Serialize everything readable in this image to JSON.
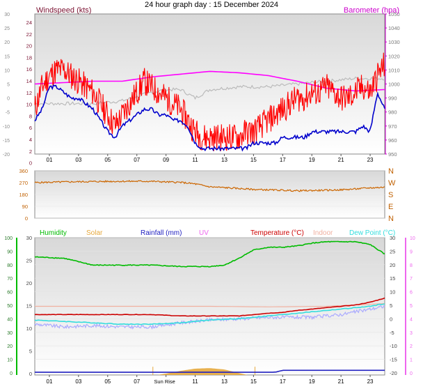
{
  "title": "24 hour graph day : 15 December 2024",
  "colors": {
    "wind": "#ff0000",
    "gust": "#0000cc",
    "baro": "#ff00ff",
    "baro_axis": "#cc00cc",
    "dir": "#cc6600",
    "humidity": "#00bb00",
    "solar": "#e6a83c",
    "rain": "#2020c0",
    "uv": "#ee66ee",
    "temp": "#cc0000",
    "indoor": "#f0b0a0",
    "dew": "#33dddd",
    "low": "#aaaaff",
    "baro_trace": "#bbbbbb",
    "axis_text": "#7a1030"
  },
  "chart_data": [
    {
      "type": "line",
      "title": "24 hour graph day : 15 December 2024",
      "ylabel": "Windspeed (kts)",
      "y2label": "Barometer (hpa)",
      "x_ticks": [
        "01",
        "03",
        "05",
        "07",
        "09",
        "11",
        "13",
        "15",
        "17",
        "19",
        "21",
        "23"
      ],
      "y_outer_ticks": [
        "30",
        "25",
        "20",
        "15",
        "10",
        "5",
        "0",
        "-5",
        "-10",
        "-15",
        "-20"
      ],
      "y_left_ticks": [
        "24",
        "22",
        "20",
        "18",
        "16",
        "14",
        "12",
        "10",
        "8",
        "6",
        "4",
        "2",
        "0"
      ],
      "y_right_ticks": [
        "1050",
        "1040",
        "1030",
        "1020",
        "1010",
        "1000",
        "990",
        "980",
        "970",
        "960",
        "950"
      ],
      "ylim": [
        0,
        25
      ],
      "y2lim": [
        950,
        1050
      ],
      "series": [
        {
          "name": "Windspeed (kts)",
          "role": "wind",
          "hours": [
            0,
            0.5,
            1,
            1.5,
            2,
            2.5,
            3,
            3.5,
            4,
            4.5,
            5,
            5.5,
            6,
            6.5,
            7,
            7.5,
            8,
            8.5,
            9,
            9.5,
            10,
            10.5,
            11,
            11.5,
            12,
            12.5,
            13,
            13.5,
            14,
            14.5,
            15,
            15.5,
            16,
            16.5,
            17,
            17.5,
            18,
            18.5,
            19,
            19.5,
            20,
            20.5,
            21,
            21.5,
            22,
            22.5,
            23,
            23.5,
            24
          ],
          "values": [
            8,
            12,
            14,
            15,
            15,
            14,
            13,
            12,
            11,
            9,
            7,
            5,
            7,
            9,
            11,
            13,
            12,
            11,
            10,
            9,
            8,
            6,
            4,
            3,
            3,
            3,
            3,
            3,
            3,
            4,
            4,
            5,
            6,
            7,
            8,
            9,
            10,
            10,
            11,
            11,
            12,
            11,
            10,
            10,
            11,
            12,
            11,
            14,
            16
          ]
        },
        {
          "name": "Gust",
          "role": "gust",
          "hours": [
            0,
            0.5,
            1,
            1.5,
            2,
            2.5,
            3,
            3.5,
            4,
            4.5,
            5,
            5.5,
            6,
            6.5,
            7,
            7.5,
            8,
            8.5,
            9,
            9.5,
            10,
            10.5,
            11,
            11.5,
            12,
            12.5,
            13,
            13.5,
            14,
            14.5,
            15,
            15.5,
            16,
            16.5,
            17,
            17.5,
            18,
            18.5,
            19,
            19.5,
            20,
            20.5,
            21,
            21.5,
            22,
            22.5,
            23,
            23.5,
            24
          ],
          "values": [
            6,
            8,
            12,
            12,
            11,
            10,
            10,
            9,
            8,
            6,
            4,
            3,
            5,
            6,
            7,
            8,
            8,
            7,
            7,
            6,
            6,
            5,
            2,
            1,
            1,
            1,
            1,
            1,
            1,
            1,
            2,
            2,
            2,
            2,
            3,
            3,
            3,
            3,
            4,
            4,
            4,
            4,
            4,
            4,
            4,
            5,
            4,
            11,
            8
          ]
        },
        {
          "name": "Barometer (hpa)",
          "role": "baro",
          "axis": "y2",
          "hours": [
            0,
            2,
            4,
            6,
            8,
            10,
            12,
            14,
            16,
            18,
            20,
            22,
            24
          ],
          "values": [
            1000,
            1001,
            1002,
            1002,
            1005,
            1007,
            1009,
            1008,
            1006,
            1002,
            997,
            995,
            996
          ]
        },
        {
          "name": "",
          "role": "baro_trace",
          "axis": "outer",
          "hours": [
            0,
            2,
            4,
            6,
            8,
            9,
            10,
            11,
            12,
            14,
            16,
            18,
            20,
            22,
            23,
            24
          ],
          "values": [
            -2,
            -2,
            -2,
            -1,
            2,
            3,
            3,
            0,
            3,
            4,
            4,
            5,
            6,
            7,
            7,
            7
          ]
        }
      ]
    },
    {
      "type": "line",
      "title": "",
      "y_left_ticks": [
        "360",
        "270",
        "180",
        "90",
        "0"
      ],
      "y_right_labels": [
        "N",
        "W",
        "S",
        "E",
        "N"
      ],
      "ylim": [
        0,
        360
      ],
      "series": [
        {
          "name": "",
          "role": "dir",
          "hours": [
            0,
            2,
            4,
            6,
            8,
            9,
            10,
            11,
            12,
            13,
            14,
            15,
            16,
            17,
            18,
            19,
            20,
            21,
            22,
            23,
            24
          ],
          "values": [
            270,
            275,
            278,
            280,
            280,
            275,
            272,
            260,
            238,
            232,
            225,
            218,
            215,
            212,
            208,
            210,
            212,
            215,
            222,
            230,
            235
          ]
        }
      ]
    },
    {
      "type": "line",
      "legend": [
        "Humidity",
        "Solar",
        "Rainfall (mm)",
        "UV",
        "Temperature (°C)",
        "Indoor",
        "Dew Point (°C)"
      ],
      "x_ticks": [
        "01",
        "03",
        "05",
        "07",
        "Sun Rise",
        "11",
        "13",
        "15",
        "17",
        "19",
        "21",
        "23"
      ],
      "sunrise_label": "Sun Rise",
      "y_humidity_ticks": [
        "100",
        "90",
        "80",
        "70",
        "60",
        "50",
        "40",
        "30",
        "20",
        "10",
        "0"
      ],
      "y_solar_ticks": [
        "30",
        "25",
        "20",
        "15",
        "10",
        "5",
        "0"
      ],
      "y_right_ticks": [
        "30",
        "25",
        "20",
        "15",
        "10",
        "5",
        "0",
        "-5",
        "-10",
        "-15",
        "-20"
      ],
      "y_uv_ticks": [
        "10",
        "9",
        "8",
        "7",
        "6",
        "5",
        "4",
        "3",
        "2",
        "1",
        "0"
      ],
      "ylim": [
        -20,
        30
      ],
      "series": [
        {
          "name": "Humidity",
          "role": "humidity",
          "hours": [
            0,
            2,
            4,
            6,
            8,
            10,
            11,
            12,
            13,
            14,
            15,
            16,
            17,
            18,
            19,
            20,
            21,
            22,
            23,
            24
          ],
          "values": [
            86,
            85,
            80,
            80,
            80,
            79,
            79,
            79,
            80,
            85,
            91,
            93,
            93,
            94,
            96,
            97,
            97,
            97,
            95,
            88
          ]
        },
        {
          "name": "Temperature (°C)",
          "role": "temp",
          "hours": [
            0,
            2,
            4,
            6,
            8,
            10,
            12,
            14,
            15,
            16,
            17,
            18,
            19,
            20,
            21,
            22,
            23,
            24
          ],
          "values": [
            2,
            2,
            2,
            2,
            2,
            1.5,
            1.5,
            1.5,
            2,
            2.5,
            2.8,
            3.5,
            4,
            4.5,
            5,
            5.5,
            6.5,
            8
          ]
        },
        {
          "name": "Indoor",
          "role": "indoor",
          "hours": [
            0,
            4,
            8,
            12,
            16,
            20,
            22,
            24
          ],
          "values": [
            5,
            5,
            5,
            5,
            4.8,
            5,
            5.5,
            6
          ]
        },
        {
          "name": "Dew Point (°C)",
          "role": "dew",
          "hours": [
            0,
            2,
            4,
            6,
            8,
            10,
            12,
            14,
            15,
            16,
            17,
            18,
            19,
            20,
            21,
            22,
            23,
            24
          ],
          "values": [
            0,
            -0.5,
            -1,
            -1.5,
            -1.5,
            -1,
            0,
            0.5,
            1,
            1.5,
            2,
            2.5,
            3,
            3.5,
            4,
            4.5,
            5,
            6
          ]
        },
        {
          "name": "",
          "role": "low",
          "hours": [
            0,
            2,
            4,
            6,
            8,
            10,
            12,
            14,
            16,
            17,
            18,
            19,
            20,
            21,
            22,
            23,
            24
          ],
          "values": [
            -1.5,
            -2.5,
            -2,
            -2.5,
            -2.5,
            -1,
            0,
            0.5,
            1,
            1,
            1,
            1,
            1.5,
            2,
            3,
            4,
            5
          ]
        },
        {
          "name": "Rainfall (mm)",
          "role": "rain",
          "hours": [
            0,
            15,
            16.5,
            17,
            18,
            24
          ],
          "values": [
            -19,
            -19,
            -19,
            -18.3,
            -18.3,
            -18.3
          ]
        },
        {
          "name": "Solar",
          "role": "solar",
          "hours": [
            8.4,
            9,
            10,
            11,
            12,
            13,
            14,
            14.6
          ],
          "values": [
            -20,
            -19.5,
            -18.5,
            -17.7,
            -17.5,
            -18,
            -19.3,
            -20
          ]
        }
      ]
    }
  ]
}
